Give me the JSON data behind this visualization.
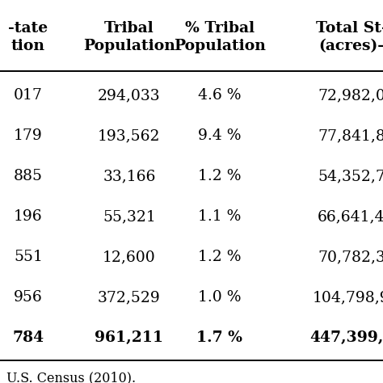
{
  "col1": [
    "017",
    "179",
    "885",
    "196",
    "551",
    "956",
    "784"
  ],
  "col2": [
    "294,033",
    "193,562",
    "33,166",
    "55,321",
    "12,600",
    "372,529",
    "961,211"
  ],
  "col3": [
    "4.6 %",
    "9.4 %",
    "1.2 %",
    "1.1 %",
    "1.2 %",
    "1.0 %",
    "1.7 %"
  ],
  "col4": [
    "72,982,0",
    "77,841,8",
    "54,352,7",
    "66,641,4",
    "70,782,3",
    "104,798,9",
    "447,399,4"
  ],
  "header1": [
    "-tate",
    "Tribal",
    "% Tribal",
    "Total St-"
  ],
  "header2": [
    "tion",
    "Population",
    "Population",
    "(acres)-"
  ],
  "footnote": "U.S. Census (2010).",
  "bg_color": "#ffffff",
  "font_size": 13.5,
  "header_font_size": 13.5,
  "footnote_font_size": 11.5
}
